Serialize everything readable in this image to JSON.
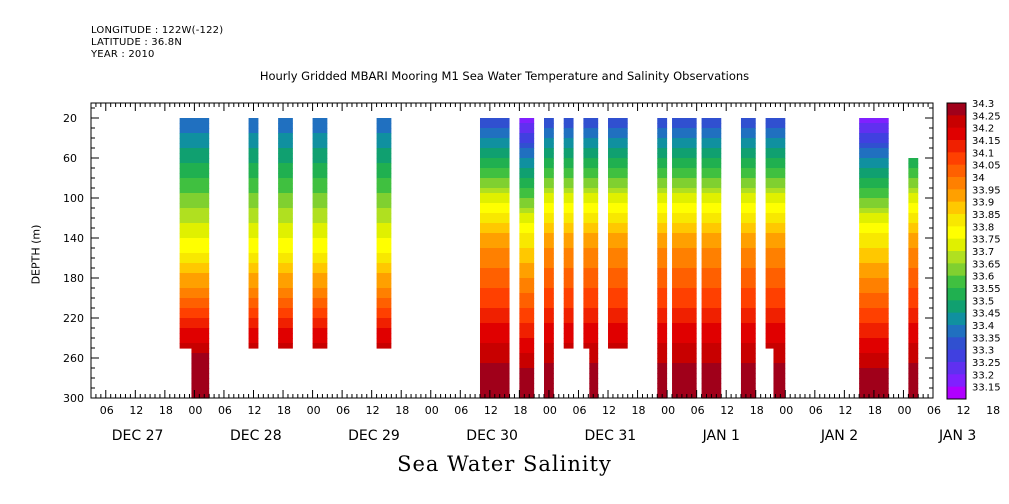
{
  "header": {
    "longitude": "LONGITUDE : 122W(-122)",
    "latitude": "LATITUDE : 36.8N",
    "year": "YEAR : 2010"
  },
  "chart_data": {
    "type": "heatmap",
    "title": "Hourly Gridded MBARI Mooring M1 Sea Water Temperature and Salinity Observations",
    "caption": "Sea Water Salinity",
    "ylabel": "DEPTH (m)",
    "y_ticks": [
      20,
      60,
      100,
      140,
      180,
      220,
      260,
      300
    ],
    "ylim": [
      300,
      5
    ],
    "x_hour_ticks": [
      "06",
      "12",
      "18",
      "00",
      "06",
      "12",
      "18",
      "00",
      "06",
      "12",
      "18",
      "00",
      "06",
      "12",
      "18",
      "00",
      "06",
      "12",
      "18",
      "00",
      "06",
      "12",
      "18",
      "00",
      "06",
      "12",
      "18",
      "00",
      "06",
      "12",
      "18",
      "00",
      "06"
    ],
    "x_day_labels": [
      "DEC 27",
      "DEC 28",
      "DEC 29",
      "DEC 30",
      "DEC 31",
      "JAN  1",
      "JAN  2",
      "JAN  3"
    ],
    "x_range_hours_from_dec27_00": [
      3,
      174
    ],
    "colorbar": {
      "levels": [
        "34.3",
        "34.25",
        "34.2",
        "34.15",
        "34.1",
        "34.05",
        "34",
        "33.95",
        "33.9",
        "33.85",
        "33.8",
        "33.75",
        "33.7",
        "33.65",
        "33.6",
        "33.55",
        "33.5",
        "33.45",
        "33.4",
        "33.35",
        "33.3",
        "33.25",
        "33.2",
        "33.15"
      ],
      "colors": [
        "#a0001a",
        "#c80000",
        "#e00000",
        "#f02000",
        "#ff4000",
        "#ff6000",
        "#ff8000",
        "#ffa000",
        "#ffc800",
        "#f8e800",
        "#ffff00",
        "#e0f000",
        "#b0e020",
        "#80d030",
        "#40c040",
        "#20b050",
        "#10a070",
        "#1090a0",
        "#2070c0",
        "#3050d0",
        "#4040e0",
        "#6030f0",
        "#8020ff",
        "#b000ff"
      ]
    },
    "columns": [
      {
        "start": 21,
        "end": 26,
        "zmax": 250,
        "deep_end": 300,
        "profile": "a"
      },
      {
        "start": 35,
        "end": 36,
        "zmax": 250,
        "profile": "a"
      },
      {
        "start": 41,
        "end": 43,
        "zmax": 250,
        "profile": "a"
      },
      {
        "start": 48,
        "end": 50,
        "zmax": 250,
        "profile": "a"
      },
      {
        "start": 61,
        "end": 63,
        "zmax": 250,
        "profile": "a"
      },
      {
        "start": 82,
        "end": 87,
        "zmax": 300,
        "profile": "b"
      },
      {
        "start": 90,
        "end": 92,
        "zmax": 300,
        "profile": "c"
      },
      {
        "start": 95,
        "end": 96,
        "zmax": 300,
        "profile": "b"
      },
      {
        "start": 99,
        "end": 100,
        "zmax": 250,
        "profile": "b"
      },
      {
        "start": 103,
        "end": 105,
        "zmax": 250,
        "deep_end": 300,
        "profile": "b"
      },
      {
        "start": 108,
        "end": 111,
        "zmax": 250,
        "profile": "b"
      },
      {
        "start": 118,
        "end": 119,
        "zmax": 300,
        "profile": "b"
      },
      {
        "start": 121,
        "end": 125,
        "zmax": 300,
        "profile": "b"
      },
      {
        "start": 127,
        "end": 130,
        "zmax": 300,
        "profile": "b"
      },
      {
        "start": 135,
        "end": 137,
        "zmax": 300,
        "profile": "b"
      },
      {
        "start": 140,
        "end": 143,
        "zmax": 250,
        "deep_end": 300,
        "profile": "b"
      },
      {
        "start": 159,
        "end": 164,
        "zmax": 300,
        "profile": "c"
      },
      {
        "start": 169,
        "end": 170,
        "zmin": 60,
        "zmax": 300,
        "profile": "b"
      }
    ]
  }
}
